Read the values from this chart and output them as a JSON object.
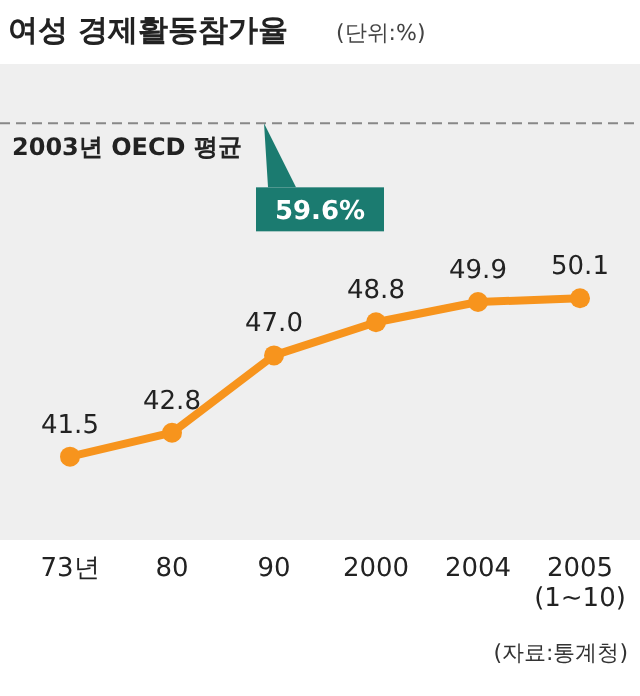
{
  "chart_data": {
    "type": "line",
    "title": "여성 경제활동참가율",
    "subtitle": "(단위:%)",
    "categories": [
      "73년",
      "80",
      "90",
      "2000",
      "2004",
      "2005\n(1~10)"
    ],
    "series": [
      {
        "color": "#f7941d",
        "values": [
          41.5,
          42.8,
          47.0,
          48.8,
          49.9,
          50.1
        ],
        "value_labels": [
          "41.5",
          "42.8",
          "47.0",
          "48.8",
          "49.9",
          "50.1"
        ]
      }
    ],
    "ref_lines": [
      {
        "axis": "y",
        "value": 59.6,
        "label": "2003년 OECD 평균",
        "color": "#888888",
        "line_style": "dashed"
      }
    ],
    "annotations": [
      {
        "text": "59.6%",
        "y": 59.6
      },
      "(자료:통계청)"
    ],
    "marker": "circle",
    "line_style": "solid"
  }
}
